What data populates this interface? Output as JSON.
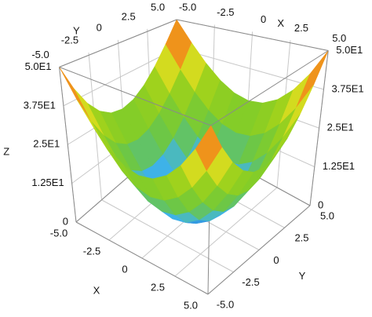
{
  "chart_data": {
    "type": "surface",
    "xlabel": "X",
    "ylabel": "Y",
    "zlabel": "Z",
    "x": [
      -5,
      -4,
      -3,
      -2,
      -1,
      0,
      1,
      2,
      3,
      4,
      5
    ],
    "y": [
      -5,
      -4,
      -3,
      -2,
      -1,
      0,
      1,
      2,
      3,
      4,
      5
    ],
    "z": [
      [
        50,
        41,
        34,
        29,
        26,
        25,
        26,
        29,
        34,
        41,
        50
      ],
      [
        41,
        32,
        25,
        20,
        17,
        16,
        17,
        20,
        25,
        32,
        41
      ],
      [
        34,
        25,
        18,
        13,
        10,
        9,
        10,
        13,
        18,
        25,
        34
      ],
      [
        29,
        20,
        13,
        8,
        5,
        4,
        5,
        8,
        13,
        20,
        29
      ],
      [
        26,
        17,
        10,
        5,
        2,
        1,
        2,
        5,
        10,
        17,
        26
      ],
      [
        25,
        16,
        9,
        4,
        1,
        0,
        1,
        4,
        9,
        16,
        25
      ],
      [
        26,
        17,
        10,
        5,
        2,
        1,
        2,
        5,
        10,
        17,
        26
      ],
      [
        29,
        20,
        13,
        8,
        5,
        4,
        5,
        8,
        13,
        20,
        29
      ],
      [
        34,
        25,
        18,
        13,
        10,
        9,
        10,
        13,
        18,
        25,
        34
      ],
      [
        41,
        32,
        25,
        20,
        17,
        16,
        17,
        20,
        25,
        32,
        41
      ],
      [
        50,
        41,
        34,
        29,
        26,
        25,
        26,
        29,
        34,
        41,
        50
      ]
    ],
    "xlim": [
      -5,
      5
    ],
    "ylim": [
      -5,
      5
    ],
    "zlim": [
      0,
      50
    ],
    "xticks": [
      {
        "value": -5,
        "label": "-5.0"
      },
      -2.5,
      0,
      2.5,
      {
        "value": 5,
        "label": "5.0"
      }
    ],
    "yticks": [
      {
        "value": -5,
        "label": "-5.0"
      },
      -2.5,
      0,
      2.5,
      {
        "value": 5,
        "label": "5.0"
      }
    ],
    "zticks": [
      0,
      {
        "value": 12.5,
        "label": "1.25E1"
      },
      {
        "value": 25,
        "label": "2.5E1"
      },
      {
        "value": 37.5,
        "label": "3.75E1"
      },
      {
        "value": 50,
        "label": "5.0E1"
      }
    ],
    "grid": true,
    "colorscale": [
      "#1a5fd0",
      "#3fb4e8",
      "#6ac64a",
      "#86cd26",
      "#a6d31a",
      "#eee022",
      "#f07818",
      "#e01818"
    ]
  }
}
